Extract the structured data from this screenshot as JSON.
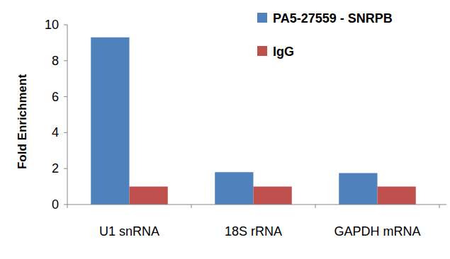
{
  "chart_data": {
    "type": "bar",
    "y_label": "Fold Enrichment",
    "categories": [
      "U1 snRNA",
      "18S rRNA",
      "GAPDH mRNA"
    ],
    "series": [
      {
        "name": "PA5-27559 - SNRPB",
        "color": "#4f81bd",
        "values": [
          9.3,
          1.8,
          1.75
        ]
      },
      {
        "name": "IgG",
        "color": "#c0504d",
        "values": [
          1,
          1,
          1
        ]
      }
    ],
    "ylim": [
      0,
      10
    ],
    "yticks": [
      0,
      2,
      4,
      6,
      8,
      10
    ],
    "grid": false,
    "legend": "upper right"
  }
}
